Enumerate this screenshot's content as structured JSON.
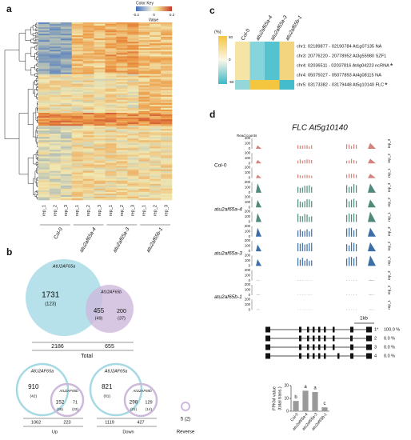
{
  "panel_a": {
    "label": "a",
    "color_key": {
      "title": "Color Key",
      "axis": "Value",
      "ticks": [
        "-0.2",
        "0",
        "0.2"
      ]
    },
    "replicates": [
      "rep_1",
      "rep_2",
      "rep_3",
      "rep_1",
      "rep_2",
      "rep_3",
      "rep_1",
      "rep_2",
      "rep_3",
      "rep_1",
      "rep_2",
      "rep_3"
    ],
    "groups": [
      "Col-0",
      "atu2af65a-4",
      "atu2af65a-3",
      "atu2af65b-1"
    ]
  },
  "panel_b": {
    "label": "b",
    "venns": [
      {
        "title": "Total",
        "set_a": "AtU2AF65a",
        "set_b": "AtU2AF65b",
        "only_a": "1731",
        "only_a_n": "(123)",
        "both": "455",
        "both_n": "(49)",
        "only_b": "200",
        "only_b_n": "(37)",
        "total_a": "2186",
        "total_b": "655"
      },
      {
        "title": "Up",
        "set_a": "AtU2AF65a",
        "set_b": "AtU2AF65b",
        "only_a": "910",
        "only_a_n": "(42)",
        "both": "152",
        "both_n": "(26)",
        "only_b": "71",
        "only_b_n": "(23)",
        "total_a": "1062",
        "total_b": "223"
      },
      {
        "title": "Down",
        "set_a": "AtU2AF65a",
        "set_b": "AtU2AF65b",
        "only_a": "821",
        "only_a_n": "(81)",
        "both": "298",
        "both_n": "(21)",
        "only_b": "129",
        "only_b_n": "(14)",
        "total_a": "1119",
        "total_b": "427"
      }
    ],
    "reverse": {
      "count": "5 (2)",
      "title": "Reverse"
    }
  },
  "panel_c": {
    "label": "c",
    "scale_title": "(%)",
    "scale_ticks": [
      "50",
      "0",
      "-50"
    ],
    "columns": [
      "Col-0",
      "atu2af65a-4",
      "atu2af65a-3",
      "atu2af65b-1"
    ],
    "rows": [
      {
        "text": "chr1: 02189877 - 02190784 At1g07135 NA",
        "colors": [
          "#f6e4a6",
          "#86d4dc",
          "#55c3cf",
          "#f3d57f"
        ]
      },
      {
        "text": "chr3: 20776220 - 20778952 At3g55980 SZF1",
        "colors": [
          "#f6e4a6",
          "#86d4dc",
          "#55c3cf",
          "#f3d57f"
        ]
      },
      {
        "text": "chr4: 02036511 - 02037816 At4g04223 ncRNA",
        "note": "*",
        "colors": [
          "#f6e4a6",
          "#86d4dc",
          "#55c3cf",
          "#f3d57f"
        ]
      },
      {
        "text": "chr4: 05075027 - 05077893 At4g08115 NA",
        "colors": [
          "#f6e4a6",
          "#86d4dc",
          "#55c3cf",
          "#f3d57f"
        ]
      },
      {
        "text": "chr5: 03173382 - 03179448 At5g10140 FLC",
        "note": "*",
        "colors": [
          "#94d6da",
          "#f4c53f",
          "#f4c53f",
          "#45bccb"
        ]
      }
    ]
  },
  "panel_d": {
    "label": "d",
    "title": "FLC At5g10140",
    "y_axis": "Read counts",
    "track_ticks": [
      "200",
      "100",
      "0"
    ],
    "genotypes": [
      {
        "name": "Col-0",
        "color": "#d4827c",
        "reps": [
          "rep_3",
          "rep_2",
          "rep_1"
        ]
      },
      {
        "name": "atu2af65a-4",
        "color": "#4f8a7c",
        "reps": [
          "rep_3",
          "rep_2",
          "rep_1"
        ]
      },
      {
        "name": "atu2af65a-3",
        "color": "#3c6ea6",
        "reps": [
          "rep_3",
          "rep_2",
          "rep_1"
        ]
      },
      {
        "name": "atu2af65b-1",
        "color": "#b5b5b5",
        "reps": [
          "rep_3",
          "rep_2",
          "rep_1"
        ]
      }
    ],
    "scale_bar": "1kb",
    "isoforms": [
      {
        "id": "1*",
        "pct": "100.0 %"
      },
      {
        "id": "2",
        "pct": "0.0 %"
      },
      {
        "id": "3",
        "pct": "0.0 %"
      },
      {
        "id": "4",
        "pct": "0.0 %"
      }
    ]
  },
  "chart_data": {
    "type": "bar",
    "y_label": [
      "FPKM value",
      "(total trans.)"
    ],
    "categories": [
      "Col-0",
      "atu2af65a-4",
      "atu2af65a-3",
      "atu2af65b-1"
    ],
    "values": [
      8,
      16,
      15,
      3
    ],
    "letters": [
      "b",
      "a",
      "a",
      "c"
    ],
    "color": "#9a9a9a",
    "ylim": [
      0,
      20
    ],
    "yticks": [
      0,
      10,
      20
    ]
  }
}
